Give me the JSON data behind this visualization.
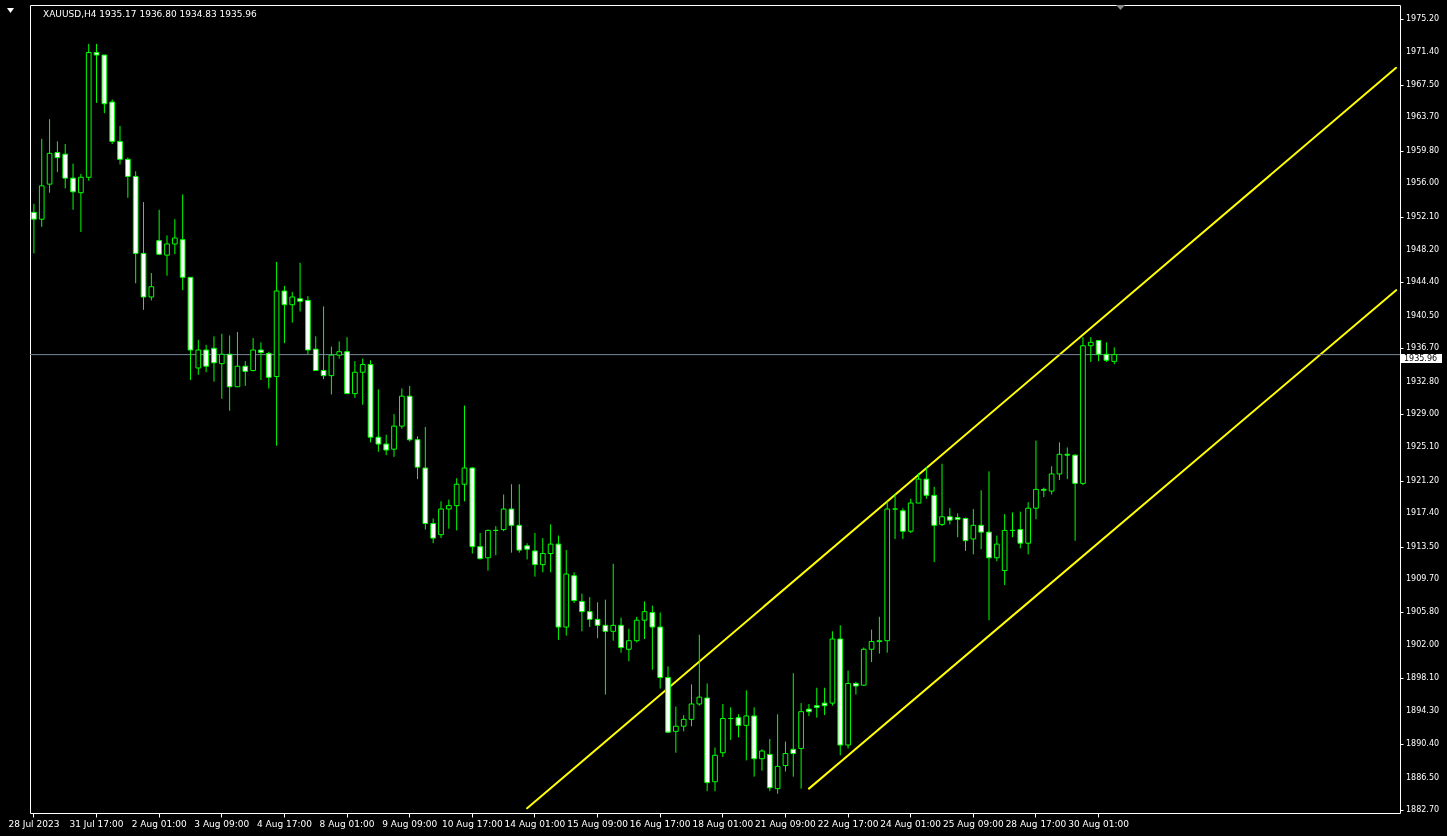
{
  "chart_data": {
    "type": "candlestick",
    "title": "XAUUSD,H4 1935.17 1936.80 1934.83 1935.96",
    "categories": [
      "28 Jul 2023",
      null,
      null,
      null,
      null,
      null,
      null,
      null,
      "31 Jul 17:00",
      null,
      null,
      null,
      null,
      null,
      null,
      null,
      "2 Aug 01:00",
      null,
      null,
      null,
      null,
      null,
      null,
      null,
      "3 Aug 09:00",
      null,
      null,
      null,
      null,
      null,
      null,
      null,
      "4 Aug 17:00",
      null,
      null,
      null,
      null,
      null,
      null,
      null,
      "8 Aug 01:00",
      null,
      null,
      null,
      null,
      null,
      null,
      null,
      "9 Aug 09:00",
      null,
      null,
      null,
      null,
      null,
      null,
      null,
      "10 Aug 17:00",
      null,
      null,
      null,
      null,
      null,
      null,
      null,
      "14 Aug 01:00",
      null,
      null,
      null,
      null,
      null,
      null,
      null,
      "15 Aug 09:00",
      null,
      null,
      null,
      null,
      null,
      null,
      null,
      "16 Aug 17:00",
      null,
      null,
      null,
      null,
      null,
      null,
      null,
      "18 Aug 01:00",
      null,
      null,
      null,
      null,
      null,
      null,
      null,
      "21 Aug 09:00",
      null,
      null,
      null,
      null,
      null,
      null,
      null,
      "22 Aug 17:00",
      null,
      null,
      null,
      null,
      null,
      null,
      null,
      "24 Aug 01:00",
      null,
      null,
      null,
      null,
      null,
      null,
      null,
      "25 Aug 09:00",
      null,
      null,
      null,
      null,
      null,
      null,
      null,
      "28 Aug 17:00",
      null,
      null,
      null,
      null,
      null,
      null,
      null,
      "30 Aug 01:00",
      null,
      null,
      null,
      null,
      null,
      null,
      null,
      null,
      null,
      null,
      null,
      null,
      null,
      null,
      null,
      null,
      null,
      null,
      null,
      null,
      null,
      null,
      null,
      null,
      null,
      null,
      null,
      null,
      null,
      null,
      null,
      null,
      null,
      null,
      null,
      null,
      null,
      null
    ],
    "series": [
      {
        "type": "line",
        "color": "#ffff00",
        "values": [
          null,
          null,
          null,
          null,
          null,
          null,
          null,
          null,
          null,
          null,
          null,
          null,
          null,
          null,
          null,
          null,
          null,
          null,
          null,
          null,
          null,
          null,
          null,
          null,
          null,
          null,
          null,
          null,
          null,
          null,
          null,
          null,
          null,
          null,
          null,
          null,
          null,
          null,
          null,
          null,
          null,
          null,
          null,
          null,
          null,
          null,
          null,
          null,
          null,
          null,
          null,
          null,
          null,
          null,
          null,
          null,
          null,
          null,
          null,
          null,
          null,
          null,
          null,
          1882.9,
          null,
          null,
          null,
          null,
          null,
          null,
          null,
          null,
          null,
          null,
          null,
          null,
          null,
          null,
          null,
          null,
          null,
          null,
          null,
          null,
          null,
          null,
          null,
          null,
          null,
          null,
          null,
          null,
          null,
          null,
          null,
          null,
          null,
          null,
          null,
          null,
          null,
          null,
          null,
          null,
          null,
          null,
          null,
          null,
          null,
          null,
          null,
          null,
          null,
          null,
          null,
          null,
          null,
          null,
          null,
          null,
          null,
          null,
          null,
          null,
          null,
          null,
          null,
          null,
          null,
          null,
          null,
          null,
          null,
          null,
          null,
          null,
          null,
          null,
          null,
          null,
          null,
          null,
          null,
          null,
          null,
          null,
          null,
          null,
          null,
          null,
          null,
          null,
          null,
          null,
          null,
          null,
          null,
          null,
          null,
          null,
          null,
          null,
          null,
          null,
          null,
          null,
          null,
          null,
          null,
          null,
          null,
          null,
          null,
          null,
          1969.5
        ]
      },
      {
        "type": "line",
        "color": "#ffff00",
        "values": [
          null,
          null,
          null,
          null,
          null,
          null,
          null,
          null,
          null,
          null,
          null,
          null,
          null,
          null,
          null,
          null,
          null,
          null,
          null,
          null,
          null,
          null,
          null,
          null,
          null,
          null,
          null,
          null,
          null,
          null,
          null,
          null,
          null,
          null,
          null,
          null,
          null,
          null,
          null,
          null,
          null,
          null,
          null,
          null,
          null,
          null,
          null,
          null,
          null,
          null,
          null,
          null,
          null,
          null,
          null,
          null,
          null,
          null,
          null,
          null,
          null,
          null,
          null,
          null,
          null,
          null,
          null,
          null,
          null,
          null,
          null,
          null,
          null,
          null,
          null,
          null,
          null,
          null,
          null,
          null,
          null,
          null,
          null,
          null,
          null,
          null,
          null,
          null,
          null,
          null,
          null,
          null,
          null,
          null,
          null,
          null,
          null,
          null,
          null,
          1885.2,
          null,
          null,
          null,
          null,
          null,
          null,
          null,
          null,
          null,
          null,
          null,
          null,
          null,
          null,
          null,
          null,
          null,
          null,
          null,
          null,
          null,
          null,
          null,
          null,
          null,
          null,
          null,
          null,
          null,
          null,
          null,
          null,
          null,
          null,
          null,
          null,
          null,
          null,
          null,
          null,
          null,
          null,
          null,
          null,
          null,
          null,
          null,
          null,
          null,
          null,
          null,
          null,
          null,
          null,
          null,
          null,
          null,
          null,
          null,
          null,
          null,
          null,
          null,
          null,
          null,
          null,
          null,
          null,
          null,
          null,
          null,
          null,
          null,
          null,
          1943.5
        ]
      },
      {
        "type": "candlestick",
        "color": "#00ff00",
        "ohlc": [
          [
            1952.6,
            1953.6,
            1947.8,
            1951.8
          ],
          [
            1951.8,
            1961.2,
            1950.9,
            1955.7
          ],
          [
            1955.9,
            1963.5,
            1954.9,
            1959.5
          ],
          [
            1959.6,
            1960.9,
            1957.3,
            1959.0
          ],
          [
            1959.4,
            1960.6,
            1955.4,
            1956.6
          ],
          [
            1956.6,
            1958.3,
            1952.9,
            1955.0
          ],
          [
            1954.9,
            1957.1,
            1950.3,
            1956.7
          ],
          [
            1956.7,
            1972.3,
            1956.3,
            1971.3
          ],
          [
            1971.3,
            1972.3,
            1965.4,
            1971.0
          ],
          [
            1971.0,
            1971.0,
            1964.2,
            1965.3
          ],
          [
            1965.5,
            1965.8,
            1960.6,
            1960.9
          ],
          [
            1960.9,
            1962.7,
            1958.2,
            1958.8
          ],
          [
            1958.8,
            1959.0,
            1954.3,
            1956.8
          ],
          [
            1956.8,
            1957.4,
            1944.3,
            1947.8
          ],
          [
            1947.8,
            1953.8,
            1941.2,
            1942.7
          ],
          [
            1942.7,
            1945.5,
            1942.3,
            1943.9
          ],
          [
            1949.3,
            1952.9,
            1947.6,
            1947.7
          ],
          [
            1947.6,
            1949.9,
            1945.2,
            1948.9
          ],
          [
            1948.9,
            1951.8,
            1947.7,
            1949.6
          ],
          [
            1949.4,
            1954.7,
            1943.5,
            1945.0
          ],
          [
            1945.0,
            1945.0,
            1933.0,
            1936.5
          ],
          [
            1934.4,
            1937.7,
            1933.6,
            1936.5
          ],
          [
            1936.5,
            1937.1,
            1933.9,
            1934.6
          ],
          [
            1936.7,
            1938.1,
            1932.8,
            1935.0
          ],
          [
            1934.9,
            1938.4,
            1930.8,
            1936.0
          ],
          [
            1936.0,
            1938.2,
            1929.4,
            1932.2
          ],
          [
            1932.2,
            1938.6,
            1932.2,
            1934.6
          ],
          [
            1934.6,
            1935.2,
            1932.3,
            1934.0
          ],
          [
            1934.1,
            1937.9,
            1934.0,
            1936.5
          ],
          [
            1936.5,
            1937.4,
            1933.0,
            1936.2
          ],
          [
            1936.1,
            1936.3,
            1932.0,
            1933.3
          ],
          [
            1933.4,
            1946.8,
            1925.3,
            1943.4
          ],
          [
            1943.4,
            1944.0,
            1937.3,
            1941.8
          ],
          [
            1941.8,
            1943.3,
            1939.7,
            1942.7
          ],
          [
            1942.5,
            1946.7,
            1941.0,
            1942.2
          ],
          [
            1942.3,
            1942.8,
            1936.0,
            1936.5
          ],
          [
            1936.6,
            1938.1,
            1934.1,
            1934.1
          ],
          [
            1934.1,
            1941.6,
            1933.1,
            1933.5
          ],
          [
            1933.5,
            1936.9,
            1931.3,
            1935.9
          ],
          [
            1935.9,
            1937.5,
            1935.5,
            1936.3
          ],
          [
            1936.3,
            1938.0,
            1931.4,
            1931.4
          ],
          [
            1931.4,
            1935.2,
            1930.9,
            1933.9
          ],
          [
            1933.9,
            1935.5,
            1930.1,
            1934.8
          ],
          [
            1934.8,
            1935.3,
            1925.7,
            1926.3
          ],
          [
            1926.3,
            1931.9,
            1924.6,
            1925.5
          ],
          [
            1925.5,
            1926.6,
            1924.2,
            1924.8
          ],
          [
            1924.9,
            1929.0,
            1924.0,
            1927.6
          ],
          [
            1927.6,
            1932.0,
            1927.3,
            1931.1
          ],
          [
            1931.1,
            1932.3,
            1925.8,
            1926.0
          ],
          [
            1926.0,
            1926.4,
            1921.4,
            1922.8
          ],
          [
            1922.7,
            1927.5,
            1915.5,
            1916.2
          ],
          [
            1916.2,
            1916.8,
            1913.9,
            1914.5
          ],
          [
            1914.9,
            1918.8,
            1914.5,
            1917.9
          ],
          [
            1917.9,
            1919.0,
            1915.6,
            1918.3
          ],
          [
            1918.3,
            1921.5,
            1915.4,
            1920.8
          ],
          [
            1920.8,
            1930.0,
            1918.8,
            1922.7
          ],
          [
            1922.7,
            1922.8,
            1912.7,
            1913.5
          ],
          [
            1913.5,
            1915.1,
            1912.0,
            1912.1
          ],
          [
            1912.2,
            1915.5,
            1910.7,
            1915.4
          ],
          [
            1915.4,
            1915.9,
            1912.5,
            1915.4
          ],
          [
            1915.5,
            1919.6,
            1915.3,
            1917.9
          ],
          [
            1917.9,
            1920.8,
            1912.8,
            1916.0
          ],
          [
            1916.0,
            1920.8,
            1912.8,
            1913.1
          ],
          [
            1913.6,
            1913.9,
            1912.0,
            1913.2
          ],
          [
            1913.0,
            1915.1,
            1910.0,
            1911.4
          ],
          [
            1911.4,
            1914.5,
            1910.5,
            1912.7
          ],
          [
            1912.7,
            1916.1,
            1910.5,
            1913.8
          ],
          [
            1913.8,
            1914.8,
            1902.6,
            1904.1
          ],
          [
            1904.1,
            1913.1,
            1903.1,
            1910.3
          ],
          [
            1910.1,
            1910.5,
            1906.9,
            1907.2
          ],
          [
            1907.1,
            1908.0,
            1903.6,
            1905.9
          ],
          [
            1905.9,
            1907.6,
            1904.1,
            1905.0
          ],
          [
            1905.0,
            1907.0,
            1902.8,
            1904.3
          ],
          [
            1904.3,
            1907.3,
            1896.2,
            1903.6
          ],
          [
            1903.6,
            1911.5,
            1902.5,
            1904.3
          ],
          [
            1904.3,
            1905.2,
            1901.1,
            1901.7
          ],
          [
            1901.5,
            1903.9,
            1900.1,
            1902.5
          ],
          [
            1902.5,
            1905.3,
            1902.3,
            1904.9
          ],
          [
            1904.9,
            1907.1,
            1902.7,
            1905.9
          ],
          [
            1905.8,
            1906.6,
            1899.1,
            1904.1
          ],
          [
            1904.1,
            1905.8,
            1896.9,
            1898.2
          ],
          [
            1898.2,
            1899.5,
            1891.7,
            1891.8
          ],
          [
            1891.9,
            1894.8,
            1889.4,
            1892.5
          ],
          [
            1892.5,
            1893.8,
            1891.9,
            1893.3
          ],
          [
            1893.3,
            1897.4,
            1892.5,
            1895.1
          ],
          [
            1895.1,
            1903.2,
            1894.9,
            1895.9
          ],
          [
            1895.8,
            1897.5,
            1884.9,
            1885.9
          ],
          [
            1886.0,
            1890.0,
            1884.9,
            1889.1
          ],
          [
            1889.4,
            1895.1,
            1888.9,
            1893.4
          ],
          [
            1893.4,
            1894.7,
            1890.9,
            1893.4
          ],
          [
            1893.5,
            1893.9,
            1891.2,
            1892.6
          ],
          [
            1892.6,
            1896.7,
            1888.5,
            1893.7
          ],
          [
            1893.7,
            1894.7,
            1886.6,
            1888.7
          ],
          [
            1888.7,
            1889.8,
            1887.3,
            1889.6
          ],
          [
            1889.2,
            1891.0,
            1884.9,
            1885.3
          ],
          [
            1885.2,
            1893.9,
            1884.6,
            1887.8
          ],
          [
            1887.9,
            1890.7,
            1887.2,
            1889.3
          ],
          [
            1889.8,
            1898.7,
            1886.6,
            1889.3
          ],
          [
            1889.9,
            1895.2,
            1885.2,
            1894.2
          ],
          [
            1894.5,
            1895.1,
            1893.7,
            1894.2
          ],
          [
            1894.9,
            1897.0,
            1893.5,
            1894.7
          ],
          [
            1895.2,
            1897.0,
            1893.8,
            1894.9
          ],
          [
            1895.2,
            1903.6,
            1894.9,
            1902.7
          ],
          [
            1902.7,
            1904.3,
            1889.1,
            1890.3
          ],
          [
            1890.3,
            1899.0,
            1889.9,
            1897.5
          ],
          [
            1897.5,
            1897.7,
            1896.2,
            1897.2
          ],
          [
            1897.3,
            1901.7,
            1897.2,
            1901.5
          ],
          [
            1901.5,
            1903.8,
            1900.0,
            1902.4
          ],
          [
            1902.4,
            1905.3,
            1901.0,
            1902.5
          ],
          [
            1902.5,
            1918.8,
            1901.1,
            1917.9
          ],
          [
            1917.9,
            1919.7,
            1914.4,
            1917.9
          ],
          [
            1917.7,
            1918.0,
            1914.4,
            1915.3
          ],
          [
            1915.3,
            1919.1,
            1915.1,
            1918.6
          ],
          [
            1918.6,
            1922.1,
            1918.6,
            1921.4
          ],
          [
            1921.4,
            1922.8,
            1919.1,
            1919.5
          ],
          [
            1919.5,
            1920.5,
            1911.7,
            1916.0
          ],
          [
            1916.1,
            1923.2,
            1915.9,
            1917.0
          ],
          [
            1917.0,
            1918.0,
            1916.1,
            1916.6
          ],
          [
            1916.9,
            1917.4,
            1914.6,
            1916.7
          ],
          [
            1916.8,
            1916.9,
            1913.0,
            1914.2
          ],
          [
            1914.4,
            1917.9,
            1912.6,
            1916.0
          ],
          [
            1916.0,
            1920.1,
            1913.2,
            1915.2
          ],
          [
            1915.2,
            1922.3,
            1904.9,
            1912.2
          ],
          [
            1912.2,
            1914.8,
            1911.8,
            1913.8
          ],
          [
            1910.7,
            1917.3,
            1909.0,
            1915.4
          ],
          [
            1915.4,
            1917.5,
            1914.6,
            1915.4
          ],
          [
            1915.5,
            1917.6,
            1913.3,
            1913.9
          ],
          [
            1913.9,
            1918.7,
            1912.6,
            1918.0
          ],
          [
            1918.0,
            1925.9,
            1916.7,
            1920.2
          ],
          [
            1920.2,
            1920.4,
            1919.3,
            1920.1
          ],
          [
            1920.0,
            1922.9,
            1919.6,
            1922.0
          ],
          [
            1922.0,
            1925.7,
            1921.3,
            1924.3
          ],
          [
            1924.3,
            1925.1,
            1921.4,
            1924.2
          ],
          [
            1924.2,
            1924.3,
            1914.2,
            1920.9
          ],
          [
            1920.9,
            1938.0,
            1920.7,
            1937.0
          ],
          [
            1937.0,
            1938.0,
            1935.1,
            1937.4
          ],
          [
            1937.6,
            1937.6,
            1935.2,
            1936.0
          ],
          [
            1936.0,
            1937.4,
            1935.1,
            1935.3
          ],
          [
            1935.17,
            1936.8,
            1934.83,
            1935.96
          ],
          null,
          null,
          null,
          null,
          null,
          null,
          null,
          null,
          null,
          null,
          null,
          null,
          null,
          null,
          null,
          null,
          null,
          null,
          null,
          null,
          null,
          null,
          null,
          null,
          null,
          null,
          null,
          null,
          null,
          null,
          null,
          null,
          null,
          null,
          null,
          null
        ]
      }
    ],
    "ylim": [
      1882.35,
      1976.85
    ],
    "yticks": [
      {
        "value": 1975.2,
        "label": "1975.20"
      },
      {
        "value": 1971.4,
        "label": "1971.40"
      },
      {
        "value": 1967.5,
        "label": "1967.50"
      },
      {
        "value": 1963.7,
        "label": "1963.70"
      },
      {
        "value": 1959.8,
        "label": "1959.80"
      },
      {
        "value": 1956.0,
        "label": "1956.00"
      },
      {
        "value": 1952.1,
        "label": "1952.10"
      },
      {
        "value": 1948.2,
        "label": "1948.20"
      },
      {
        "value": 1944.4,
        "label": "1944.40"
      },
      {
        "value": 1940.5,
        "label": "1940.50"
      },
      {
        "value": 1936.7,
        "label": "1936.70"
      },
      {
        "value": 1932.8,
        "label": "1932.80"
      },
      {
        "value": 1929.0,
        "label": "1929.00"
      },
      {
        "value": 1925.1,
        "label": "1925.10"
      },
      {
        "value": 1921.2,
        "label": "1921.20"
      },
      {
        "value": 1917.4,
        "label": "1917.40"
      },
      {
        "value": 1913.5,
        "label": "1913.50"
      },
      {
        "value": 1909.7,
        "label": "1909.70"
      },
      {
        "value": 1905.8,
        "label": "1905.80"
      },
      {
        "value": 1902.0,
        "label": "1902.00"
      },
      {
        "value": 1898.1,
        "label": "1898.10"
      },
      {
        "value": 1894.3,
        "label": "1894.30"
      },
      {
        "value": 1890.4,
        "label": "1890.40"
      },
      {
        "value": 1886.5,
        "label": "1886.50"
      },
      {
        "value": 1882.7,
        "label": "1882.70"
      }
    ],
    "ref_lines": [
      {
        "axis": "y",
        "value": 1935.96,
        "label": "1935.96",
        "color": "#778899"
      }
    ]
  }
}
